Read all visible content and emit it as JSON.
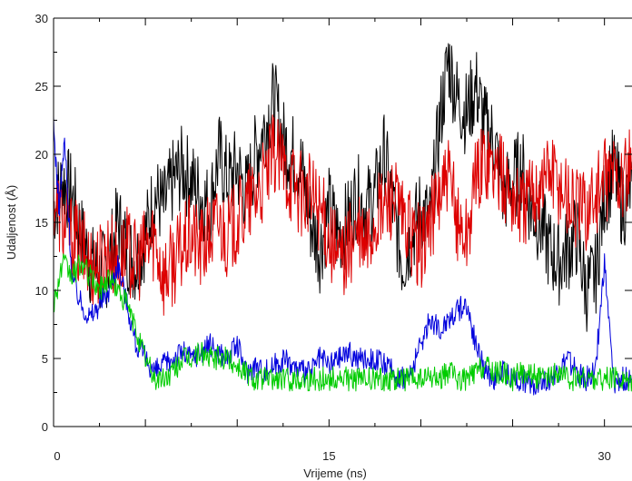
{
  "chart_data": {
    "type": "line",
    "title": "",
    "xlabel": "Vrijeme (ns)",
    "ylabel": "Udaljenost (Å)",
    "xlim": [
      0,
      31.5
    ],
    "ylim": [
      0,
      30
    ],
    "x_ticks": [
      0,
      15,
      30
    ],
    "y_ticks": [
      0,
      5,
      10,
      15,
      20,
      25,
      30
    ],
    "grid": false,
    "legend": "none",
    "series": [
      {
        "color": "#000000",
        "x": [
          0,
          0.5,
          1,
          1.5,
          2,
          2.5,
          3,
          3.5,
          4,
          4.5,
          5,
          5.5,
          6,
          6.5,
          7,
          7.5,
          8,
          8.5,
          9,
          9.5,
          10,
          10.5,
          11,
          11.5,
          12,
          12.5,
          13,
          13.5,
          14,
          14.5,
          15,
          15.5,
          16,
          16.5,
          17,
          17.5,
          18,
          18.5,
          19,
          19.5,
          20,
          20.5,
          21,
          21.5,
          22,
          22.5,
          23,
          23.5,
          24,
          24.5,
          25,
          25.5,
          26,
          26.5,
          27,
          27.5,
          28,
          28.5,
          29,
          29.5,
          30,
          30.5,
          31,
          31.5
        ],
        "values": [
          16,
          18,
          17,
          14,
          12,
          11,
          12,
          15,
          13,
          12,
          14,
          17,
          16,
          18,
          19,
          18,
          17,
          16,
          20,
          18,
          19,
          17,
          20,
          22,
          24,
          21,
          20,
          19,
          15,
          13,
          16,
          14,
          15,
          17,
          16,
          17,
          20,
          16,
          12,
          14,
          16,
          15,
          22,
          27,
          24,
          23,
          25,
          22,
          21,
          17,
          18,
          19,
          16,
          15,
          13,
          12,
          13,
          14,
          10,
          11,
          17,
          19,
          16,
          18
        ]
      },
      {
        "color": "#dd0000",
        "x": [
          0,
          0.5,
          1,
          1.5,
          2,
          2.5,
          3,
          3.5,
          4,
          4.5,
          5,
          5.5,
          6,
          6.5,
          7,
          7.5,
          8,
          8.5,
          9,
          9.5,
          10,
          10.5,
          11,
          11.5,
          12,
          12.5,
          13,
          13.5,
          14,
          14.5,
          15,
          15.5,
          16,
          16.5,
          17,
          17.5,
          18,
          18.5,
          19,
          19.5,
          20,
          20.5,
          21,
          21.5,
          22,
          22.5,
          23,
          23.5,
          24,
          24.5,
          25,
          25.5,
          26,
          26.5,
          27,
          27.5,
          28,
          28.5,
          29,
          29.5,
          30,
          30.5,
          31,
          31.5
        ],
        "values": [
          17,
          15,
          14,
          13,
          12,
          12,
          13,
          12,
          13,
          12,
          13,
          14,
          11,
          12,
          13,
          14,
          13,
          14,
          15,
          14,
          15,
          16,
          17,
          18,
          20,
          19,
          18,
          17,
          17,
          16,
          14,
          12,
          13,
          14,
          13,
          15,
          16,
          17,
          15,
          14,
          13,
          15,
          17,
          18,
          15,
          14,
          18,
          20,
          19,
          18,
          17,
          16,
          17,
          18,
          19,
          18,
          17,
          16,
          16,
          17,
          18,
          19,
          18,
          19
        ]
      },
      {
        "color": "#0000dd",
        "x": [
          0,
          0.3,
          0.6,
          1,
          1.5,
          2,
          2.5,
          3,
          3.5,
          4,
          4.5,
          5,
          5.5,
          6,
          6.5,
          7,
          7.5,
          8,
          8.5,
          9,
          9.5,
          10,
          10.5,
          11,
          11.5,
          12,
          12.5,
          13,
          13.5,
          14,
          14.5,
          15,
          15.5,
          16,
          16.5,
          17,
          17.5,
          18,
          18.5,
          19,
          19.5,
          20,
          20.5,
          21,
          21.5,
          22,
          22.5,
          23,
          23.5,
          24,
          24.5,
          25,
          25.5,
          26,
          26.5,
          27,
          27.5,
          28,
          28.5,
          29,
          29.5,
          30,
          30.5,
          31,
          31.5
        ],
        "values": [
          22,
          16,
          21,
          11,
          9,
          8,
          9,
          10,
          12,
          9,
          6,
          5,
          4,
          4.5,
          5,
          5.5,
          5,
          5.5,
          6,
          5.5,
          5,
          6,
          4,
          4.5,
          4,
          4.5,
          5,
          4.5,
          4,
          4,
          5,
          4.5,
          5,
          5.5,
          5,
          5,
          5,
          4.5,
          4,
          3.5,
          4,
          6,
          8,
          7,
          8,
          8.5,
          9,
          6,
          4,
          3.5,
          4,
          3.5,
          3.5,
          3,
          3.5,
          3.5,
          4,
          5,
          4,
          3.5,
          4,
          12,
          3,
          3.5,
          3.5
        ]
      },
      {
        "color": "#00cc00",
        "x": [
          0,
          0.5,
          1,
          1.5,
          2,
          2.5,
          3,
          3.5,
          4,
          4.5,
          5,
          5.5,
          6,
          6.5,
          7,
          7.5,
          8,
          8.5,
          9,
          9.5,
          10,
          10.5,
          11,
          11.5,
          12,
          12.5,
          13,
          13.5,
          14,
          14.5,
          15,
          15.5,
          16,
          16.5,
          17,
          17.5,
          18,
          18.5,
          19,
          19.5,
          20,
          20.5,
          21,
          21.5,
          22,
          22.5,
          23,
          23.5,
          24,
          24.5,
          25,
          25.5,
          26,
          26.5,
          27,
          27.5,
          28,
          28.5,
          29,
          29.5,
          30,
          30.5,
          31,
          31.5
        ],
        "values": [
          9,
          12,
          11,
          12,
          11,
          10,
          11,
          10,
          9,
          7,
          5,
          3.5,
          3.5,
          4,
          5,
          5,
          5.5,
          5,
          5,
          5,
          4.5,
          4,
          3.5,
          3.5,
          3.5,
          3.5,
          3.5,
          3.5,
          3.5,
          3.5,
          3.5,
          3.5,
          3.5,
          3.5,
          3.5,
          3.5,
          3.5,
          3.5,
          3.5,
          3.5,
          3.5,
          3.5,
          3.5,
          4,
          3.5,
          3.5,
          4,
          4.5,
          4,
          4,
          3.5,
          4,
          4,
          3.5,
          3.5,
          4,
          3.5,
          3.5,
          3.5,
          3.5,
          3.5,
          3.5,
          3.5,
          3.5
        ]
      }
    ]
  }
}
